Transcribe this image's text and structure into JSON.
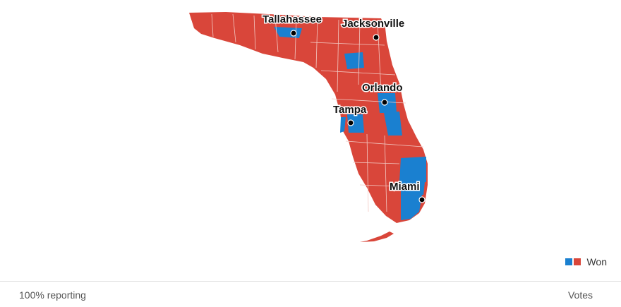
{
  "colors": {
    "won_blue": "#1a80d0",
    "won_red": "#d9463a",
    "county_border": "#f2c8c2",
    "city_dot": "#000000"
  },
  "map": {
    "region": "Florida",
    "county_legend": "won-by-party"
  },
  "cities": [
    {
      "id": "tallahassee",
      "name": "Tallahassee"
    },
    {
      "id": "jacksonville",
      "name": "Jacksonville"
    },
    {
      "id": "orlando",
      "name": "Orlando"
    },
    {
      "id": "tampa",
      "name": "Tampa"
    },
    {
      "id": "miami",
      "name": "Miami"
    }
  ],
  "legend": {
    "label": "Won",
    "swatch_colors": [
      "#1a80d0",
      "#d9463a"
    ]
  },
  "footer": {
    "reporting": "100% reporting",
    "votes_label": "Votes"
  }
}
